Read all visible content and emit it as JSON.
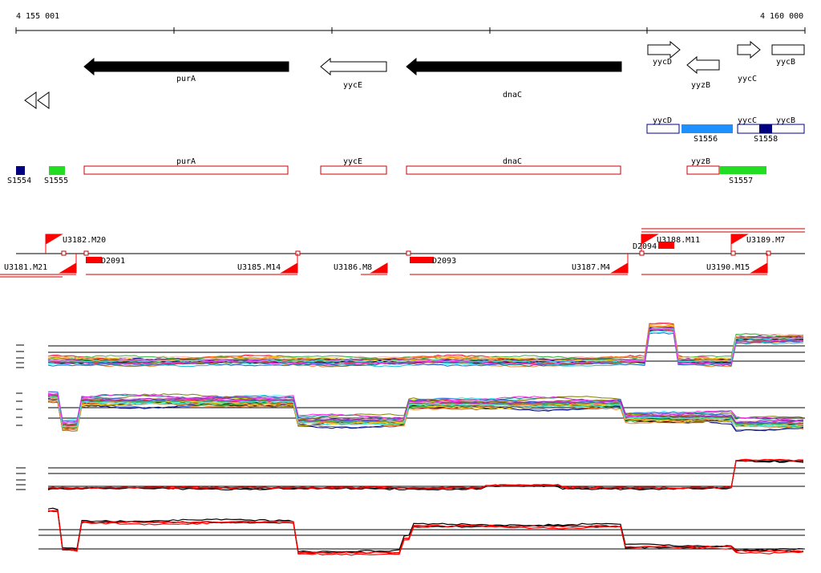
{
  "ruler": {
    "start_label": "4 155 001",
    "end_label": "4 160 000"
  },
  "colors": {
    "gene_filled": "#000000",
    "transcript_border": "#cc0000",
    "blue_segment": "#1e90ff",
    "dark_blue": "#000080",
    "green": "#22dd22",
    "red": "#ff0000"
  },
  "genes": [
    {
      "name": "purA",
      "label": "purA",
      "strand": "-",
      "style": "filled"
    },
    {
      "name": "yycE",
      "label": "yycE",
      "strand": "-",
      "style": "outline"
    },
    {
      "name": "dnaC",
      "label": "dnaC",
      "strand": "-",
      "style": "filled"
    },
    {
      "name": "yycD",
      "label": "yycD",
      "strand": "+",
      "style": "outline"
    },
    {
      "name": "yyzB",
      "label": "yyzB",
      "strand": "-",
      "style": "outline"
    },
    {
      "name": "yycC",
      "label": "yycC",
      "strand": "+",
      "style": "outline"
    },
    {
      "name": "yycB",
      "label": "yycB",
      "strand": "+",
      "style": "outline"
    }
  ],
  "segments_upper": [
    {
      "label": "yycD"
    },
    {
      "label": "yycC"
    },
    {
      "label": "yycB"
    },
    {
      "label": "S1556"
    },
    {
      "label": "S1558"
    }
  ],
  "segments_lower": [
    {
      "label": "S1554"
    },
    {
      "label": "S1555"
    },
    {
      "label": "purA"
    },
    {
      "label": "yycE"
    },
    {
      "label": "dnaC"
    },
    {
      "label": "yyzB"
    },
    {
      "label": "S1557"
    }
  ],
  "upstream_features": [
    {
      "label": "U3182.M20"
    },
    {
      "label": "U3188.M11"
    },
    {
      "label": "U3189.M7"
    },
    {
      "label": "D2094"
    }
  ],
  "downstream_features": [
    {
      "label": "U3181.M21"
    },
    {
      "label": "D2091"
    },
    {
      "label": "U3185.M14"
    },
    {
      "label": "U3186.M8"
    },
    {
      "label": "D2093"
    },
    {
      "label": "U3187.M4"
    },
    {
      "label": "U3190.M15"
    }
  ]
}
